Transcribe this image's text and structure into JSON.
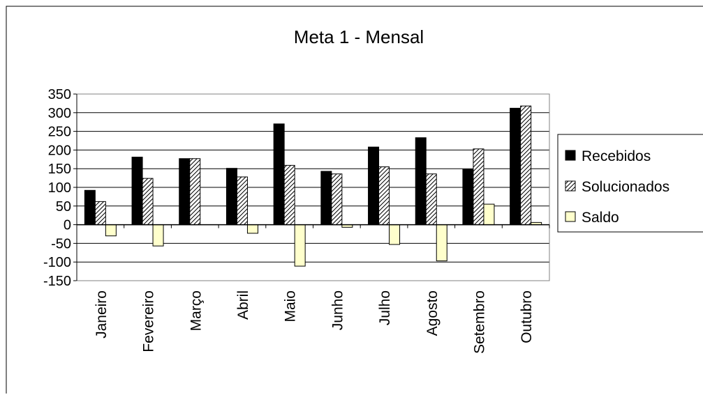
{
  "chart_data": {
    "type": "bar",
    "title": "Meta 1 - Mensal",
    "categories": [
      "Janeiro",
      "Fevereiro",
      "Março",
      "Abril",
      "Maio",
      "Junho",
      "Julho",
      "Agosto",
      "Setembro",
      "Outubro"
    ],
    "series": [
      {
        "name": "Recebidos",
        "values": [
          92,
          181,
          177,
          151,
          270,
          143,
          208,
          233,
          148,
          312
        ],
        "color": "#000000",
        "pattern": "solid"
      },
      {
        "name": "Solucionados",
        "values": [
          62,
          124,
          177,
          128,
          159,
          136,
          155,
          136,
          203,
          318
        ],
        "color": "#ffffff",
        "pattern": "diagonal-hatch"
      },
      {
        "name": "Saldo",
        "values": [
          -30,
          -57,
          0,
          -23,
          -111,
          -7,
          -53,
          -97,
          55,
          6
        ],
        "color": "#ffffcc",
        "pattern": "solid"
      }
    ],
    "ylim": [
      -150,
      350
    ],
    "yticks": [
      -150,
      -100,
      -50,
      0,
      50,
      100,
      150,
      200,
      250,
      300,
      350
    ],
    "grid": true,
    "legend_position": "right"
  }
}
